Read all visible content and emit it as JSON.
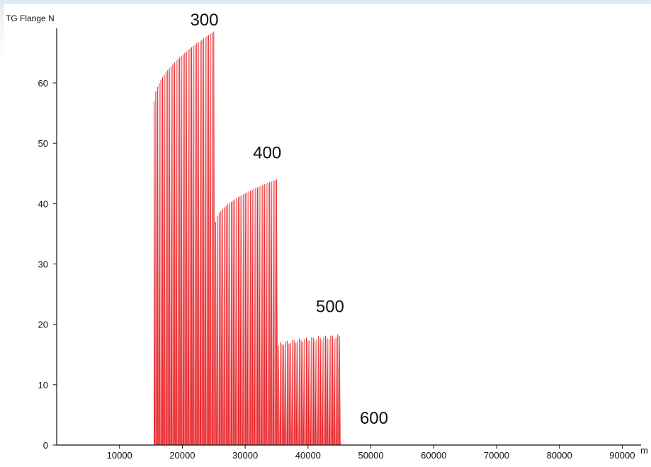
{
  "chart_data": {
    "type": "line",
    "ylabel": "TG Flange N",
    "xlabel": "m",
    "xlim": [
      0,
      93000
    ],
    "ylim": [
      0,
      70
    ],
    "x_ticks": [
      10000,
      20000,
      30000,
      40000,
      50000,
      60000,
      70000,
      80000,
      90000
    ],
    "x_tick_labels": [
      "10000",
      "20000",
      "30000",
      "40000",
      "50000",
      "60000",
      "70000",
      "80000",
      "90000"
    ],
    "y_ticks": [
      0,
      10,
      20,
      30,
      40,
      50,
      60
    ],
    "y_tick_labels": [
      "0",
      "10",
      "20",
      "30",
      "40",
      "50",
      "60"
    ],
    "grid": false,
    "series_color": "#e8262b",
    "segments": [
      {
        "label": "300",
        "label_x": 23500,
        "label_y": 69.5,
        "x_start": 15500,
        "x_end": 25000,
        "peak_start": 57,
        "peak_end": 68.5
      },
      {
        "label": "400",
        "label_x": 33500,
        "label_y": 47.5,
        "x_start": 25300,
        "x_end": 35000,
        "peak_start": 37,
        "peak_end": 44
      },
      {
        "label": "500",
        "label_x": 43500,
        "label_y": 22,
        "x_start": 35300,
        "x_end": 45000,
        "peak_start": 16.5,
        "peak_end": 18
      },
      {
        "label": "600",
        "label_x": 50500,
        "label_y": 3.5,
        "x_start": null,
        "x_end": null,
        "peak_start": null,
        "peak_end": null
      }
    ]
  }
}
